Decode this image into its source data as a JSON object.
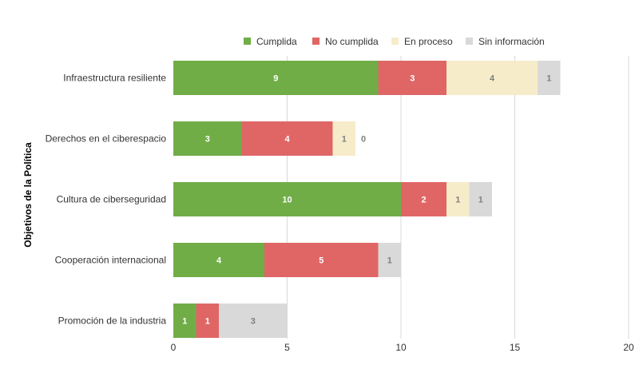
{
  "chart_data": {
    "type": "bar",
    "orientation": "horizontal",
    "stacked": true,
    "ylabel": "Objetivos de la Política",
    "xlabel": "",
    "xlim": [
      0,
      20
    ],
    "xticks": [
      0,
      5,
      10,
      15,
      20
    ],
    "grid": true,
    "legend_position": "top",
    "categories": [
      "Infraestructura resiliente",
      "Derechos en el ciberespacio",
      "Cultura de ciberseguridad",
      "Cooperación internacional",
      "Promoción de la industria"
    ],
    "series": [
      {
        "name": "Cumplida",
        "color": "#70ad47",
        "label_color": "#ffffff",
        "values": [
          9,
          3,
          10,
          4,
          1
        ]
      },
      {
        "name": "No cumplida",
        "color": "#e06666",
        "label_color": "#ffffff",
        "values": [
          3,
          4,
          2,
          5,
          1
        ]
      },
      {
        "name": "En proceso",
        "color": "#f7ecca",
        "label_color": "#7f7f7f",
        "values": [
          4,
          1,
          1,
          0,
          0
        ]
      },
      {
        "name": "Sin información",
        "color": "#d9d9d9",
        "label_color": "#7f7f7f",
        "values": [
          1,
          0,
          1,
          1,
          3
        ]
      }
    ]
  }
}
